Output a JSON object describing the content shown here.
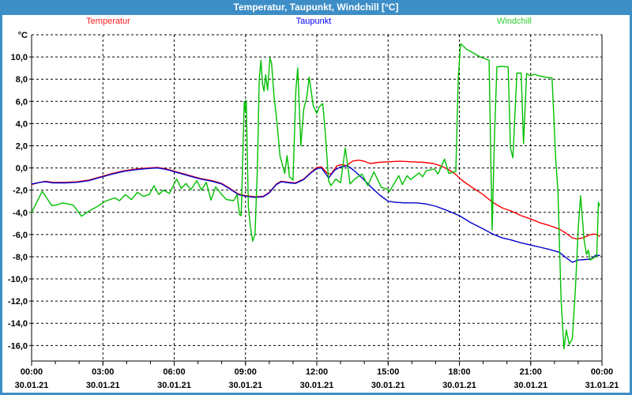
{
  "window": {
    "title": "Temperatur, Taupunkt, Windchill [°C]",
    "titlebar_color": "#3d8ec6",
    "border_color": "#3d8ec6",
    "background_color": "#ffffff"
  },
  "legend": {
    "items": [
      {
        "label": "Temperatur",
        "color": "#ff2020"
      },
      {
        "label": "Taupunkt",
        "color": "#0000ff"
      },
      {
        "label": "Windchill",
        "color": "#33cc33"
      }
    ]
  },
  "chart_data": {
    "type": "line",
    "title": "Temperatur, Taupunkt, Windchill [°C]",
    "y_unit_label": "°C",
    "ylim": [
      -17.4,
      12
    ],
    "xlim_hours": [
      0,
      24
    ],
    "grid": "dashed",
    "legend_position": "top",
    "decimal_separator": ",",
    "y_ticks": [
      {
        "value": 10,
        "label": "10,0"
      },
      {
        "value": 8,
        "label": "8,0"
      },
      {
        "value": 6,
        "label": "6,0"
      },
      {
        "value": 4,
        "label": "4,0"
      },
      {
        "value": 2,
        "label": "2,0"
      },
      {
        "value": 0,
        "label": "0,0"
      },
      {
        "value": -2,
        "label": "-2,0"
      },
      {
        "value": -4,
        "label": "-4,0"
      },
      {
        "value": -6,
        "label": "-6,0"
      },
      {
        "value": -8,
        "label": "-8,0"
      },
      {
        "value": -10,
        "label": "-10,0"
      },
      {
        "value": -12,
        "label": "-12,0"
      },
      {
        "value": -14,
        "label": "-14,0"
      },
      {
        "value": -16,
        "label": "-16,0"
      }
    ],
    "y_gridline_top_value": 12,
    "x_ticks": [
      {
        "hour": 0,
        "time": "00:00",
        "date": "30.01.21"
      },
      {
        "hour": 3,
        "time": "03:00",
        "date": "30.01.21"
      },
      {
        "hour": 6,
        "time": "06:00",
        "date": "30.01.21"
      },
      {
        "hour": 9,
        "time": "09:00",
        "date": "30.01.21"
      },
      {
        "hour": 12,
        "time": "12:00",
        "date": "30.01.21"
      },
      {
        "hour": 15,
        "time": "15:00",
        "date": "30.01.21"
      },
      {
        "hour": 18,
        "time": "18:00",
        "date": "30.01.21"
      },
      {
        "hour": 21,
        "time": "21:00",
        "date": "30.01.21"
      },
      {
        "hour": 24,
        "time": "00:00",
        "date": "31.01.21"
      }
    ],
    "x_minor_tick_hours": 1,
    "series": [
      {
        "name": "Temperatur",
        "color": "#ff0000",
        "points": [
          [
            0,
            -1.5
          ],
          [
            0.35,
            -1.3
          ],
          [
            0.6,
            -1.2
          ],
          [
            0.9,
            -1.3
          ],
          [
            1.4,
            -1.3
          ],
          [
            1.9,
            -1.25
          ],
          [
            2.4,
            -1.1
          ],
          [
            2.9,
            -0.8
          ],
          [
            3.4,
            -0.5
          ],
          [
            3.9,
            -0.25
          ],
          [
            4.4,
            -0.1
          ],
          [
            4.9,
            0
          ],
          [
            5.3,
            0.05
          ],
          [
            5.7,
            -0.1
          ],
          [
            6.1,
            -0.35
          ],
          [
            6.6,
            -0.65
          ],
          [
            7.1,
            -0.95
          ],
          [
            7.6,
            -1.15
          ],
          [
            8,
            -1.4
          ],
          [
            8.35,
            -1.85
          ],
          [
            8.7,
            -2.35
          ],
          [
            9,
            -2.5
          ],
          [
            9.4,
            -2.6
          ],
          [
            9.75,
            -2.55
          ],
          [
            10,
            -2.2
          ],
          [
            10.3,
            -1.45
          ],
          [
            10.5,
            -1.2
          ],
          [
            10.85,
            -1.3
          ],
          [
            11.1,
            -1.35
          ],
          [
            11.45,
            -1
          ],
          [
            11.75,
            -0.4
          ],
          [
            12,
            0.05
          ],
          [
            12.2,
            0.1
          ],
          [
            12.45,
            -0.5
          ],
          [
            12.6,
            -0.55
          ],
          [
            12.85,
            0.2
          ],
          [
            13.05,
            0.3
          ],
          [
            13.25,
            0.2
          ],
          [
            13.5,
            0.6
          ],
          [
            13.75,
            0.7
          ],
          [
            14,
            0.6
          ],
          [
            14.25,
            0.4
          ],
          [
            14.6,
            0.5
          ],
          [
            15,
            0.55
          ],
          [
            15.5,
            0.6
          ],
          [
            16,
            0.55
          ],
          [
            16.5,
            0.5
          ],
          [
            16.9,
            0.4
          ],
          [
            17.2,
            0.2
          ],
          [
            17.5,
            -0.1
          ],
          [
            17.8,
            -0.5
          ],
          [
            18.1,
            -1.1
          ],
          [
            18.5,
            -1.7
          ],
          [
            19,
            -2.4
          ],
          [
            19.4,
            -3.1
          ],
          [
            19.8,
            -3.6
          ],
          [
            20.2,
            -3.9
          ],
          [
            20.6,
            -4.3
          ],
          [
            21,
            -4.6
          ],
          [
            21.4,
            -4.95
          ],
          [
            21.8,
            -5.2
          ],
          [
            22.2,
            -5.5
          ],
          [
            22.5,
            -5.9
          ],
          [
            22.75,
            -6.3
          ],
          [
            22.95,
            -6.4
          ],
          [
            23.2,
            -6.3
          ],
          [
            23.45,
            -6.05
          ],
          [
            23.65,
            -5.95
          ],
          [
            23.8,
            -6
          ],
          [
            23.9,
            -6.15
          ]
        ]
      },
      {
        "name": "Taupunkt",
        "color": "#0000cc",
        "points": [
          [
            0,
            -1.45
          ],
          [
            0.35,
            -1.3
          ],
          [
            0.6,
            -1.25
          ],
          [
            0.9,
            -1.35
          ],
          [
            1.4,
            -1.35
          ],
          [
            1.9,
            -1.3
          ],
          [
            2.4,
            -1.15
          ],
          [
            2.9,
            -0.85
          ],
          [
            3.4,
            -0.55
          ],
          [
            3.9,
            -0.3
          ],
          [
            4.4,
            -0.15
          ],
          [
            4.9,
            -0.05
          ],
          [
            5.3,
            0
          ],
          [
            5.7,
            -0.15
          ],
          [
            6.1,
            -0.4
          ],
          [
            6.6,
            -0.7
          ],
          [
            7.1,
            -1
          ],
          [
            7.6,
            -1.2
          ],
          [
            8,
            -1.45
          ],
          [
            8.35,
            -1.9
          ],
          [
            8.7,
            -2.4
          ],
          [
            9,
            -2.55
          ],
          [
            9.4,
            -2.65
          ],
          [
            9.75,
            -2.6
          ],
          [
            10,
            -2.25
          ],
          [
            10.3,
            -1.5
          ],
          [
            10.5,
            -1.25
          ],
          [
            10.85,
            -1.35
          ],
          [
            11.1,
            -1.4
          ],
          [
            11.45,
            -1.05
          ],
          [
            11.75,
            -0.45
          ],
          [
            12,
            -0.05
          ],
          [
            12.2,
            0
          ],
          [
            12.5,
            -0.9
          ],
          [
            12.75,
            -0.2
          ],
          [
            13,
            0.1
          ],
          [
            13.3,
            0.2
          ],
          [
            13.55,
            -0.2
          ],
          [
            13.8,
            -0.7
          ],
          [
            14,
            -1.1
          ],
          [
            14.3,
            -1.75
          ],
          [
            14.65,
            -2.45
          ],
          [
            15,
            -3
          ],
          [
            15.3,
            -3.1
          ],
          [
            15.7,
            -3.15
          ],
          [
            16.2,
            -3.15
          ],
          [
            16.6,
            -3.25
          ],
          [
            17,
            -3.45
          ],
          [
            17.5,
            -3.85
          ],
          [
            18,
            -4.3
          ],
          [
            18.5,
            -4.95
          ],
          [
            19,
            -5.5
          ],
          [
            19.4,
            -5.95
          ],
          [
            19.8,
            -6.3
          ],
          [
            20.2,
            -6.5
          ],
          [
            20.6,
            -6.75
          ],
          [
            21,
            -6.95
          ],
          [
            21.4,
            -7.15
          ],
          [
            21.8,
            -7.35
          ],
          [
            22.2,
            -7.6
          ],
          [
            22.5,
            -8.1
          ],
          [
            22.75,
            -8.5
          ],
          [
            23,
            -8.3
          ],
          [
            23.3,
            -8.25
          ],
          [
            23.55,
            -8.2
          ],
          [
            23.75,
            -7.85
          ],
          [
            23.9,
            -7.9
          ]
        ]
      },
      {
        "name": "Windchill",
        "color": "#00bf00",
        "points": [
          [
            0,
            -4
          ],
          [
            0.45,
            -2.1
          ],
          [
            0.85,
            -3.4
          ],
          [
            1.1,
            -3.3
          ],
          [
            1.3,
            -3.15
          ],
          [
            1.75,
            -3.35
          ],
          [
            2.1,
            -4.35
          ],
          [
            2.4,
            -3.9
          ],
          [
            2.75,
            -3.5
          ],
          [
            3.1,
            -3
          ],
          [
            3.5,
            -2.7
          ],
          [
            3.7,
            -2.95
          ],
          [
            3.95,
            -2.4
          ],
          [
            4.2,
            -2.85
          ],
          [
            4.45,
            -2.2
          ],
          [
            4.7,
            -2.55
          ],
          [
            4.95,
            -2.4
          ],
          [
            5.15,
            -1.6
          ],
          [
            5.35,
            -2.4
          ],
          [
            5.55,
            -2
          ],
          [
            5.8,
            -2.3
          ],
          [
            6.1,
            -1
          ],
          [
            6.3,
            -1.85
          ],
          [
            6.5,
            -1.4
          ],
          [
            6.7,
            -1.95
          ],
          [
            6.95,
            -1.15
          ],
          [
            7.15,
            -2
          ],
          [
            7.35,
            -1.3
          ],
          [
            7.55,
            -2.9
          ],
          [
            7.75,
            -1.7
          ],
          [
            8,
            -2.4
          ],
          [
            8.2,
            -2.85
          ],
          [
            8.5,
            -2.95
          ],
          [
            8.65,
            -2.4
          ],
          [
            8.75,
            -4.2
          ],
          [
            8.82,
            -4.3
          ],
          [
            8.95,
            6
          ],
          [
            9,
            5
          ],
          [
            9.03,
            6.1
          ],
          [
            9.12,
            -3.5
          ],
          [
            9.2,
            -5.2
          ],
          [
            9.3,
            -6.6
          ],
          [
            9.4,
            -6
          ],
          [
            9.5,
            0
          ],
          [
            9.58,
            8
          ],
          [
            9.65,
            9.7
          ],
          [
            9.72,
            7.5
          ],
          [
            9.78,
            6.9
          ],
          [
            9.85,
            8.4
          ],
          [
            9.93,
            7
          ],
          [
            10.03,
            9.9
          ],
          [
            10.1,
            9.4
          ],
          [
            10.2,
            6.5
          ],
          [
            10.32,
            4.2
          ],
          [
            10.45,
            1.1
          ],
          [
            10.55,
            0.3
          ],
          [
            10.65,
            -0.5
          ],
          [
            10.75,
            1.1
          ],
          [
            10.85,
            -0.8
          ],
          [
            11,
            -1.1
          ],
          [
            11.12,
            7
          ],
          [
            11.2,
            9
          ],
          [
            11.33,
            2
          ],
          [
            11.45,
            5.3
          ],
          [
            11.58,
            6.4
          ],
          [
            11.68,
            8.2
          ],
          [
            11.85,
            5.6
          ],
          [
            12,
            4.9
          ],
          [
            12.1,
            5.5
          ],
          [
            12.25,
            5.8
          ],
          [
            12.35,
            3.4
          ],
          [
            12.5,
            -1.2
          ],
          [
            12.6,
            -1.6
          ],
          [
            12.8,
            -1
          ],
          [
            13,
            -1.35
          ],
          [
            13.2,
            1.8
          ],
          [
            13.4,
            -1.45
          ],
          [
            13.6,
            -1
          ],
          [
            13.9,
            -0.55
          ],
          [
            14.15,
            -1.6
          ],
          [
            14.4,
            -0.35
          ],
          [
            14.72,
            -1.75
          ],
          [
            14.95,
            -1.9
          ],
          [
            15.05,
            -2.15
          ],
          [
            15.45,
            -0.7
          ],
          [
            15.6,
            -1.5
          ],
          [
            15.8,
            -0.7
          ],
          [
            15.95,
            -1.05
          ],
          [
            16.3,
            -0.45
          ],
          [
            16.45,
            -0.8
          ],
          [
            16.6,
            -0.25
          ],
          [
            16.95,
            -0.1
          ],
          [
            17.1,
            -0.55
          ],
          [
            17.38,
            0.8
          ],
          [
            17.55,
            -0.5
          ],
          [
            17.85,
            -0.3
          ],
          [
            17.95,
            8
          ],
          [
            18.05,
            11.2
          ],
          [
            18.3,
            10.7
          ],
          [
            18.55,
            10.4
          ],
          [
            18.8,
            10.1
          ],
          [
            19,
            9.9
          ],
          [
            19.25,
            9.7
          ],
          [
            19.32,
            1
          ],
          [
            19.38,
            -5.6
          ],
          [
            19.48,
            3
          ],
          [
            19.58,
            9.1
          ],
          [
            19.8,
            9.15
          ],
          [
            20.05,
            9.1
          ],
          [
            20.15,
            1.8
          ],
          [
            20.25,
            0.9
          ],
          [
            20.42,
            8.55
          ],
          [
            20.6,
            8.55
          ],
          [
            20.7,
            2.2
          ],
          [
            20.83,
            8.5
          ],
          [
            21,
            8.3
          ],
          [
            21.15,
            8.45
          ],
          [
            21.35,
            8.3
          ],
          [
            21.6,
            8.2
          ],
          [
            21.9,
            8.1
          ],
          [
            22.05,
            1
          ],
          [
            22.15,
            -2.2
          ],
          [
            22.28,
            -12
          ],
          [
            22.4,
            -16.3
          ],
          [
            22.5,
            -14.6
          ],
          [
            22.62,
            -15.9
          ],
          [
            22.75,
            -15.4
          ],
          [
            22.88,
            -11
          ],
          [
            23,
            -5.5
          ],
          [
            23.1,
            -2.5
          ],
          [
            23.25,
            -6.5
          ],
          [
            23.35,
            -7.8
          ],
          [
            23.42,
            -7.4
          ],
          [
            23.5,
            -8.3
          ],
          [
            23.65,
            -8.1
          ],
          [
            23.78,
            -7.9
          ],
          [
            23.85,
            -3.1
          ],
          [
            23.9,
            -3.4
          ]
        ]
      }
    ]
  }
}
